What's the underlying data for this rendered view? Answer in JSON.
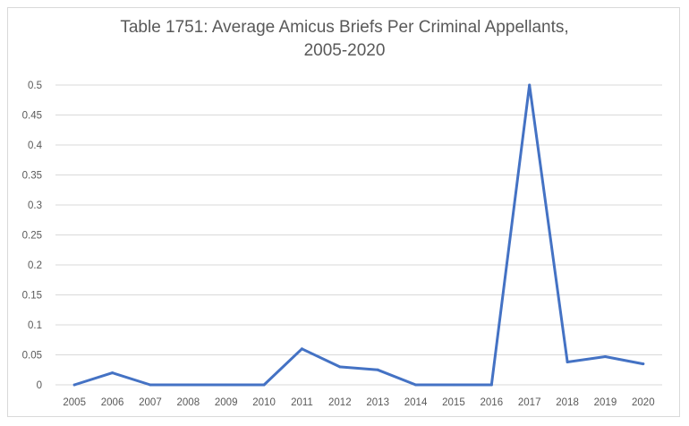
{
  "chart_data": {
    "type": "line",
    "title_line1": "Table 1751: Average Amicus Briefs Per Criminal Appellants,",
    "title_line2": "2005-2020",
    "x": [
      "2005",
      "2006",
      "2007",
      "2008",
      "2009",
      "2010",
      "2011",
      "2012",
      "2013",
      "2014",
      "2015",
      "2016",
      "2017",
      "2018",
      "2019",
      "2020"
    ],
    "series": [
      {
        "values": [
          0,
          0.02,
          0,
          0,
          0,
          0,
          0.06,
          0.03,
          0.025,
          0,
          0,
          0,
          0.5,
          0.038,
          0.047,
          0.035
        ]
      }
    ],
    "yticks": [
      "0",
      "0.05",
      "0.1",
      "0.15",
      "0.2",
      "0.25",
      "0.3",
      "0.35",
      "0.4",
      "0.45",
      "0.5"
    ],
    "ylim": [
      0,
      0.5
    ],
    "grid": true,
    "line_color": "#4472c4",
    "grid_color": "#d9d9d9"
  }
}
